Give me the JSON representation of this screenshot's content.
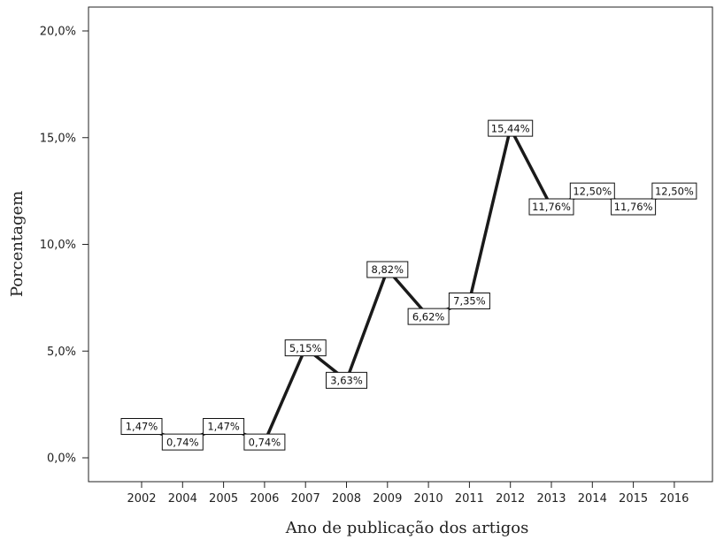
{
  "chart_data": {
    "type": "line",
    "title": "",
    "xlabel": "Ano de publicação dos artigos",
    "ylabel": "Porcentagem",
    "categories": [
      "2002",
      "2004",
      "2005",
      "2006",
      "2007",
      "2008",
      "2009",
      "2010",
      "2011",
      "2012",
      "2013",
      "2014",
      "2015",
      "2016"
    ],
    "values": [
      1.47,
      0.74,
      1.47,
      0.74,
      5.15,
      3.63,
      8.82,
      6.62,
      7.35,
      15.44,
      11.76,
      12.5,
      11.76,
      12.5
    ],
    "data_labels": [
      "1,47%",
      "0,74%",
      "1,47%",
      "0,74%",
      "5,15%",
      "3,63%",
      "8,82%",
      "6,62%",
      "7,35%",
      "15,44%",
      "11,76%",
      "12,50%",
      "11,76%",
      "12,50%"
    ],
    "yticks": [
      0,
      5,
      10,
      15,
      20
    ],
    "ytick_labels": [
      "0,0%",
      "5,0%",
      "10,0%",
      "15,0%",
      "20,0%"
    ],
    "ylim": [
      0,
      21
    ],
    "grid": false,
    "legend": "none",
    "line_color": "#1a1a1a"
  }
}
